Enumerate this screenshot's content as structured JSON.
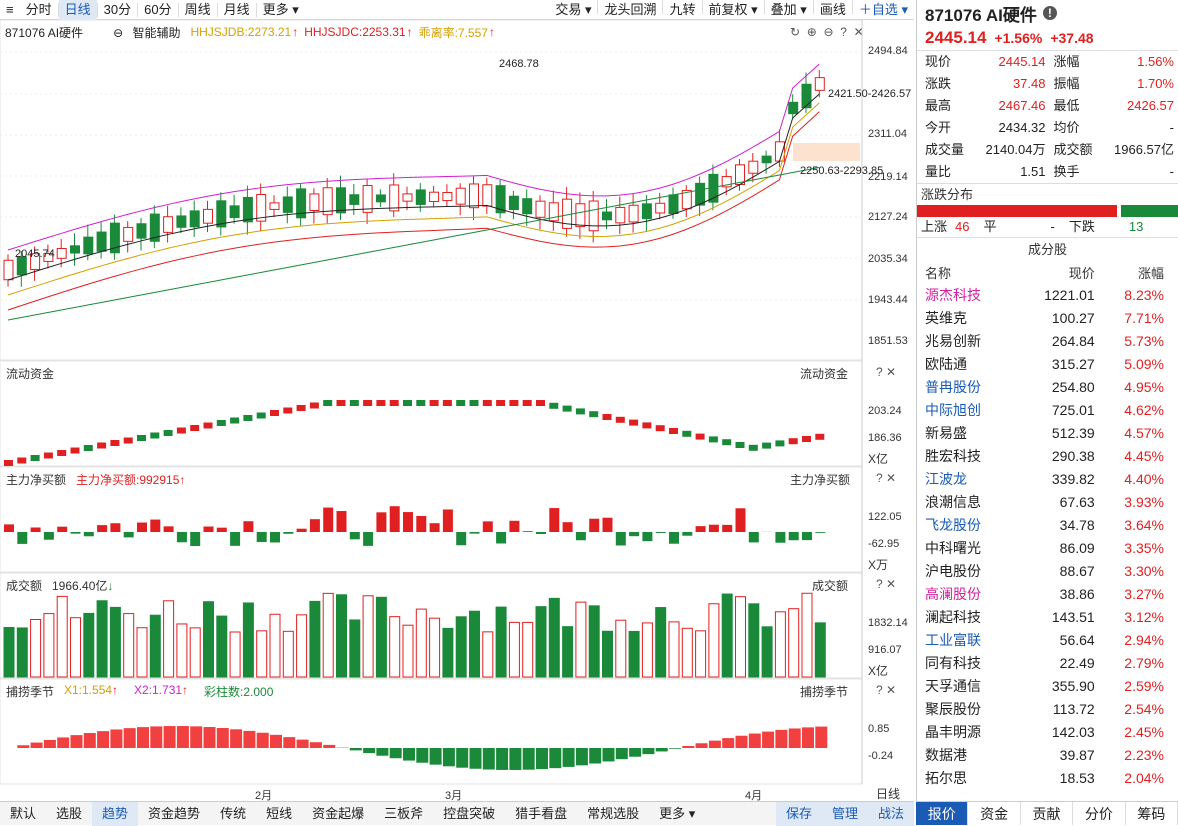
{
  "toolbar": {
    "items": [
      "分时",
      "日线",
      "30分",
      "60分",
      "周线",
      "月线",
      "更多"
    ],
    "right": [
      "交易",
      "龙头回溯",
      "九转",
      "前复权",
      "叠加",
      "画线",
      "自选"
    ]
  },
  "chart": {
    "code_name": "871076 AI硬件",
    "assist": "智能辅助",
    "hhjsjdb": "HHJSJDB:2273.21",
    "hhjsjdc": "HHJSJDC:2253.31",
    "guai": "乖离率:7.557",
    "price_axis": [
      "2494.84",
      "2311.04",
      "2219.14",
      "2127.24",
      "2035.34",
      "1943.44",
      "1851.53"
    ],
    "ann_high": "2468.78",
    "ann_low": "2045.74",
    "ann_right": "2421.50-2426.57",
    "ann_band": "2250.63-2293.85"
  },
  "flow": {
    "label": "流动资金",
    "axis": [
      "203.24",
      "186.36"
    ],
    "unit": "X亿"
  },
  "net": {
    "label": "主力净买额",
    "value": "主力净买额:992915",
    "axis": [
      "122.05",
      "-62.95"
    ],
    "unit": "X万"
  },
  "volume": {
    "label": "成交额",
    "value": "1966.40亿",
    "axis": [
      "1832.14",
      "916.07"
    ],
    "unit": "X亿"
  },
  "season": {
    "label": "捕捞季节",
    "x1": "X1:1.554",
    "x2": "X2:1.731",
    "cz": "彩柱数:2.000",
    "axis": [
      "0.85",
      "-0.24"
    ]
  },
  "xaxis": {
    "months": [
      "2月",
      "3月",
      "4月"
    ],
    "period": "日线"
  },
  "stock": {
    "title": "871076 AI硬件",
    "price": "2445.14",
    "pct": "+1.56%",
    "chg": "+37.48"
  },
  "quote": [
    [
      "现价",
      "2445.14",
      "涨幅",
      "1.56%"
    ],
    [
      "涨跌",
      "37.48",
      "振幅",
      "1.70%"
    ],
    [
      "最高",
      "2467.46",
      "最低",
      "2426.57"
    ],
    [
      "今开",
      "2434.32",
      "均价",
      "-"
    ],
    [
      "成交量",
      "2140.04万",
      "成交额",
      "1966.57亿"
    ],
    [
      "量比",
      "1.51",
      "换手",
      "-"
    ]
  ],
  "dist": {
    "title": "涨跌分布",
    "up_label": "上涨",
    "up": "46",
    "flat_label": "平",
    "flat": "-",
    "down_label": "下跌",
    "down": "13"
  },
  "constituents": {
    "title": "成分股",
    "headers": [
      "名称",
      "现价",
      "涨幅"
    ],
    "rows": [
      [
        "源杰科技",
        "1221.01",
        "8.23%"
      ],
      [
        "英维克",
        "100.27",
        "7.71%"
      ],
      [
        "兆易创新",
        "264.84",
        "5.73%"
      ],
      [
        "欧陆通",
        "315.27",
        "5.09%"
      ],
      [
        "普冉股份",
        "254.80",
        "4.95%"
      ],
      [
        "中际旭创",
        "725.01",
        "4.62%"
      ],
      [
        "新易盛",
        "512.39",
        "4.57%"
      ],
      [
        "胜宏科技",
        "290.38",
        "4.45%"
      ],
      [
        "江波龙",
        "339.82",
        "4.40%"
      ],
      [
        "浪潮信息",
        "67.63",
        "3.93%"
      ],
      [
        "飞龙股份",
        "34.78",
        "3.64%"
      ],
      [
        "中科曙光",
        "86.09",
        "3.35%"
      ],
      [
        "沪电股份",
        "88.67",
        "3.30%"
      ],
      [
        "高澜股份",
        "38.86",
        "3.27%"
      ],
      [
        "澜起科技",
        "143.51",
        "3.12%"
      ],
      [
        "工业富联",
        "56.64",
        "2.94%"
      ],
      [
        "同有科技",
        "22.49",
        "2.79%"
      ],
      [
        "天孚通信",
        "355.90",
        "2.59%"
      ],
      [
        "聚辰股份",
        "113.72",
        "2.54%"
      ],
      [
        "晶丰明源",
        "142.03",
        "2.45%"
      ],
      [
        "数据港",
        "39.87",
        "2.23%"
      ],
      [
        "拓尔思",
        "18.53",
        "2.04%"
      ]
    ]
  },
  "bottom": [
    "默认",
    "选股",
    "趋势",
    "资金趋势",
    "传统",
    "短线",
    "资金起爆",
    "三板斧",
    "控盘突破",
    "猎手看盘",
    "常规选股",
    "更多",
    "保存",
    "管理",
    "战法"
  ],
  "rtabs": [
    "报价",
    "资金",
    "贡献",
    "分价",
    "筹码"
  ]
}
